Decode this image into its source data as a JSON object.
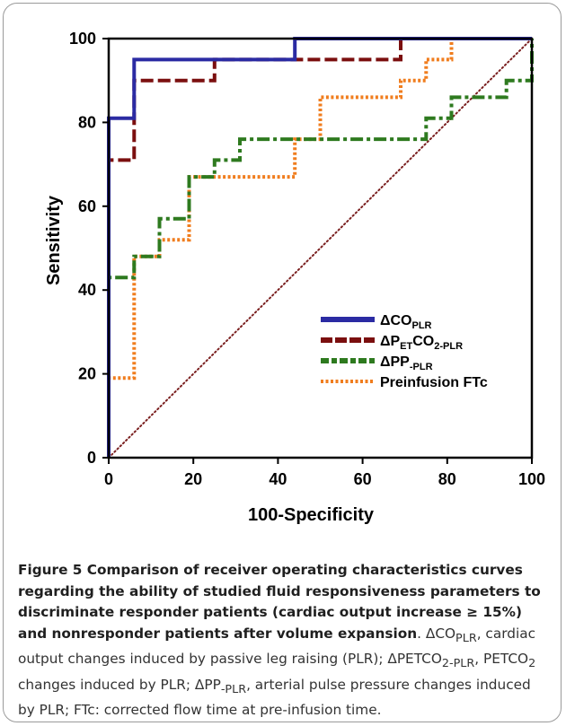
{
  "chart_data": {
    "type": "line",
    "xlabel": "100-Specificity",
    "ylabel": "Sensitivity",
    "xlim": [
      0,
      100
    ],
    "ylim": [
      0,
      100
    ],
    "xticks": [
      "0",
      "20",
      "40",
      "60",
      "80",
      "100"
    ],
    "yticks": [
      "0",
      "20",
      "40",
      "60",
      "80",
      "100"
    ],
    "legend_position": "bottom-right",
    "reference_line": {
      "x": [
        0,
        100
      ],
      "y": [
        0,
        100
      ],
      "color": "#7a1f1f",
      "style": "dotted"
    },
    "series": [
      {
        "key": "dco",
        "legend": {
          "main": "ΔCO",
          "sub": "PLR",
          "tail": ""
        },
        "color": "#2b2ba3",
        "style": "solid",
        "x": [
          0,
          0,
          6,
          6,
          44,
          44,
          100
        ],
        "y": [
          0,
          81,
          81,
          95,
          95,
          100,
          100
        ]
      },
      {
        "key": "dpetco2",
        "legend": {
          "main": "ΔP",
          "sub": "ET",
          "mid": "CO",
          "sub2": "2-PLR"
        },
        "color": "#7b0f0f",
        "style": "dashed",
        "x": [
          0,
          0,
          6,
          6,
          25,
          25,
          69,
          69,
          100
        ],
        "y": [
          0,
          71,
          71,
          90,
          90,
          95,
          95,
          100,
          100
        ]
      },
      {
        "key": "dpp",
        "legend": {
          "main": "ΔPP",
          "sub": "-PLR",
          "tail": ""
        },
        "color": "#2e7a1f",
        "style": "dashdot",
        "x": [
          0,
          0,
          6,
          6,
          12,
          12,
          19,
          19,
          25,
          25,
          31,
          31,
          75,
          75,
          81,
          81,
          94,
          94,
          100,
          100
        ],
        "y": [
          0,
          43,
          43,
          48,
          48,
          57,
          57,
          67,
          67,
          71,
          71,
          76,
          76,
          81,
          81,
          86,
          86,
          90,
          90,
          100
        ]
      },
      {
        "key": "ftc",
        "legend": {
          "main": "Preinfusion  FTc",
          "sub": "",
          "tail": ""
        },
        "color": "#f07d1e",
        "style": "dotted",
        "x": [
          0,
          0,
          6,
          6,
          12,
          12,
          19,
          19,
          44,
          44,
          50,
          50,
          69,
          69,
          75,
          75,
          81,
          81,
          100
        ],
        "y": [
          0,
          19,
          19,
          48,
          48,
          52,
          52,
          67,
          67,
          76,
          76,
          86,
          86,
          90,
          90,
          95,
          95,
          100,
          100
        ]
      }
    ]
  },
  "caption": {
    "fig_label": "Figure 5",
    "title": " Comparison of receiver operating characteristics curves regarding the ability of studied fluid responsiveness parameters to discriminate responder patients (cardiac output increase ≥ 15%) and nonresponder patients after volume expansion",
    "seg1": ". ΔCO",
    "sub1": "PLR",
    "seg2": ", cardiac output changes induced by passive leg raising (PLR); ΔPETCO",
    "sub2": "2-PLR",
    "seg3": ", PETCO",
    "sub3": "2",
    "seg4": " changes induced by PLR; ΔPP",
    "sub4": "-PLR",
    "seg5": ", arterial pulse pressure changes induced by PLR; FTc: corrected flow time at pre-infusion time."
  }
}
